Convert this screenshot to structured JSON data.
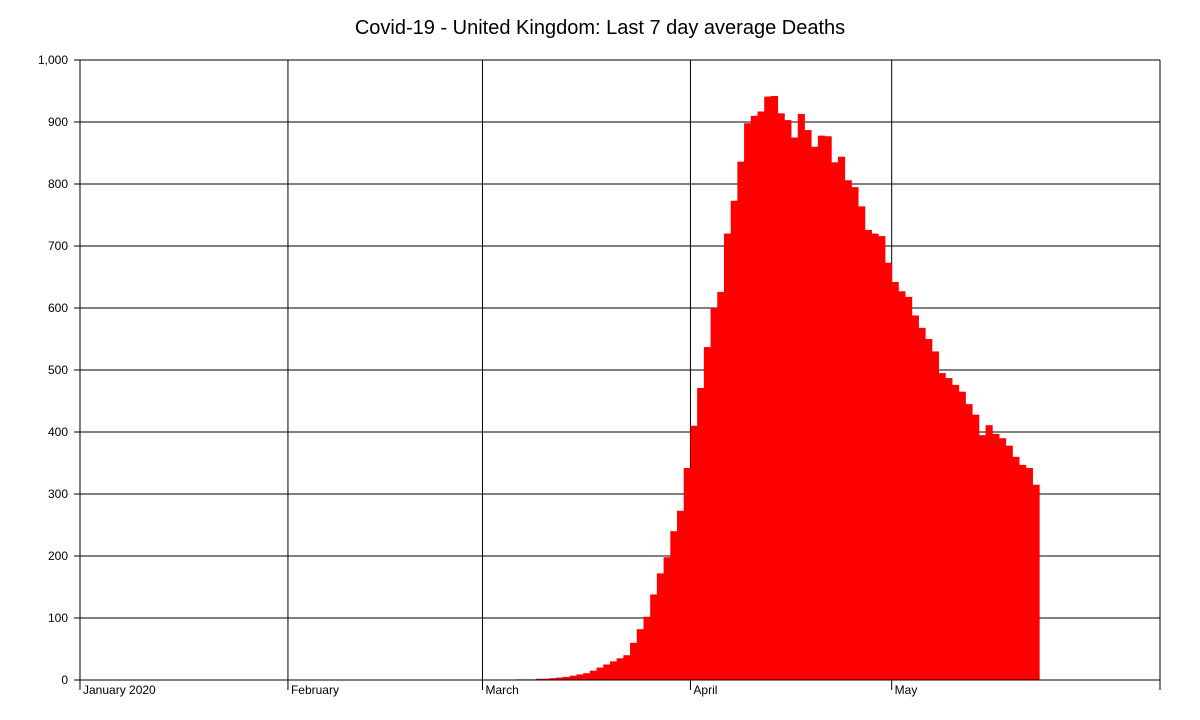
{
  "chart_data": {
    "type": "bar",
    "title": "Covid-19 - United Kingdom: Last 7 day average Deaths",
    "xlabel": "",
    "ylabel": "",
    "ylim": [
      0,
      1000
    ],
    "yticks": [
      0,
      100,
      200,
      300,
      400,
      500,
      600,
      700,
      800,
      900,
      1000
    ],
    "ytick_labels": [
      "0",
      "100",
      "200",
      "300",
      "400",
      "500",
      "600",
      "700",
      "800",
      "900",
      "1,000"
    ],
    "xlim": [
      "2020-01-01",
      "2020-06-10"
    ],
    "month_ticks": [
      {
        "date": "2020-01-01",
        "label": "January 2020"
      },
      {
        "date": "2020-02-01",
        "label": "February"
      },
      {
        "date": "2020-03-01",
        "label": "March"
      },
      {
        "date": "2020-04-01",
        "label": "April"
      },
      {
        "date": "2020-05-01",
        "label": "May"
      }
    ],
    "grid": true,
    "bar_color": "#ff0000",
    "series": [
      {
        "x_start": "2020-03-06",
        "values": [
          1,
          1,
          1,
          2,
          2,
          3,
          4,
          5,
          7,
          9,
          11,
          15,
          20,
          25,
          30,
          35,
          40,
          60,
          82,
          102,
          138,
          172,
          198,
          240,
          273,
          342,
          410,
          471,
          537,
          600,
          626,
          720,
          773,
          836,
          898,
          910,
          917,
          941,
          942,
          914,
          903,
          875,
          913,
          887,
          860,
          878,
          877,
          835,
          844,
          806,
          795,
          764,
          726,
          720,
          716,
          673,
          642,
          627,
          618,
          588,
          568,
          550,
          530,
          495,
          487,
          476,
          465,
          445,
          428,
          395,
          411,
          397,
          390,
          378,
          360,
          347,
          342,
          315
        ]
      }
    ]
  }
}
